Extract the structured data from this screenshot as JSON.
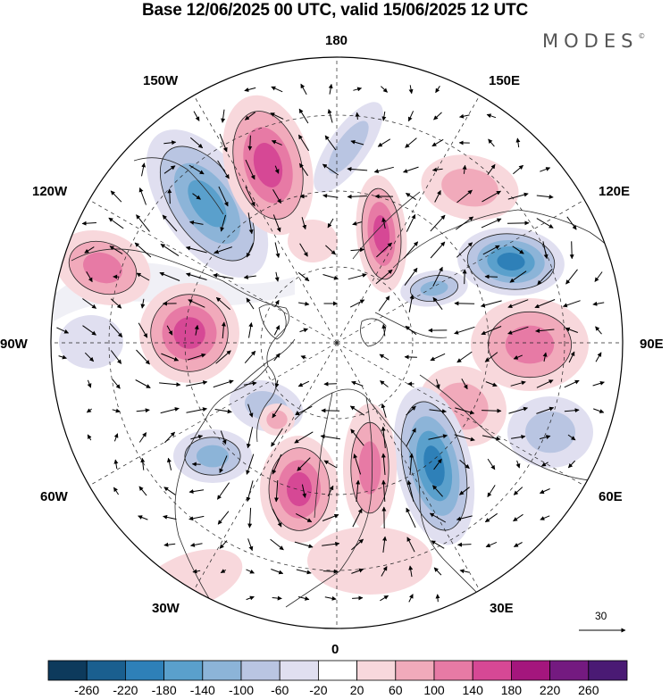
{
  "title": "Base 12/06/2025 00 UTC, valid 15/06/2025 12 UTC",
  "brand": {
    "text": "MODES",
    "mark": "©"
  },
  "longitude_labels": {
    "lon_180": "180",
    "lon_150e": "150E",
    "lon_120e": "120E",
    "lon_90e": "90E",
    "lon_60e": "60E",
    "lon_30e": "30E",
    "lon_0": "0",
    "lon_30w": "30W",
    "lon_60w": "60W",
    "lon_90w": "90W",
    "lon_120w": "120W",
    "lon_150w": "150W"
  },
  "reference_vector": {
    "value": "30"
  },
  "colorbar": {
    "ticks": [
      "-260",
      "-220",
      "-180",
      "-140",
      "-100",
      "-60",
      "-20",
      "20",
      "60",
      "100",
      "140",
      "180",
      "220",
      "260"
    ],
    "colors": [
      "#0d3a5c",
      "#1a5f8f",
      "#2e80b8",
      "#5aa0cc",
      "#8cb4d8",
      "#b9c5e2",
      "#e0dff0",
      "#ffffff",
      "#f8d8dc",
      "#f1aabb",
      "#e77aa5",
      "#d64895",
      "#a4167d",
      "#741a80",
      "#4a1a74"
    ]
  },
  "anomaly_centers": [
    {
      "sign": "neg",
      "level": 4
    },
    {
      "sign": "pos",
      "level": 4
    },
    {
      "sign": "neg",
      "level": 2
    },
    {
      "sign": "pos",
      "level": 4
    },
    {
      "sign": "pos",
      "level": 2
    },
    {
      "sign": "neg",
      "level": 5
    },
    {
      "sign": "neg",
      "level": 3
    },
    {
      "sign": "pos",
      "level": 3
    },
    {
      "sign": "pos",
      "level": 2
    },
    {
      "sign": "neg",
      "level": 2
    },
    {
      "sign": "neg",
      "level": 5
    },
    {
      "sign": "pos",
      "level": 3
    },
    {
      "sign": "pos",
      "level": 4
    },
    {
      "sign": "neg",
      "level": 3
    },
    {
      "sign": "pos",
      "level": 4
    },
    {
      "sign": "pos",
      "level": 3
    },
    {
      "sign": "pos",
      "level": 1
    },
    {
      "sign": "neg",
      "level": 2
    },
    {
      "sign": "pos",
      "level": 1
    },
    {
      "sign": "pos",
      "level": 1
    },
    {
      "sign": "pos",
      "level": 2
    },
    {
      "sign": "neg",
      "level": 1
    }
  ]
}
